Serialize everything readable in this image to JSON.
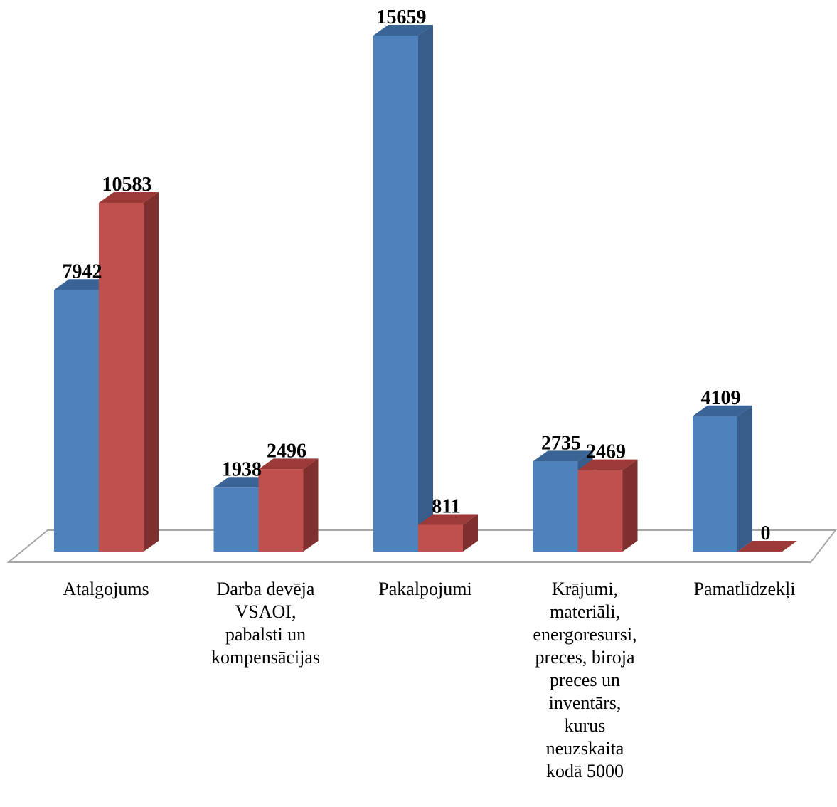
{
  "chart_data": {
    "type": "bar",
    "style": "3d-clustered-column",
    "categories": [
      "Atalgojums",
      "Darba devēja VSAOI, pabalsti un kompensācijas",
      "Pakalpojumi",
      "Krājumi, materiāli, energoresursi, preces, biroja preces un inventārs, kurus neuzskaita kodā 5000",
      "Pamatlīdzekļi"
    ],
    "category_lines": [
      [
        "Atalgojums"
      ],
      [
        "Darba devēja",
        "VSAOI,",
        "pabalsti un",
        "kompensācijas"
      ],
      [
        "Pakalpojumi"
      ],
      [
        "Krājumi,",
        "materiāli,",
        "energoresursi,",
        "preces, biroja",
        "preces un",
        "inventārs,",
        "kurus",
        "neuzskaita",
        "kodā 5000"
      ],
      [
        "Pamatlīdzekļi"
      ]
    ],
    "series": [
      {
        "values": [
          7942,
          1938,
          15659,
          2735,
          4109
        ],
        "color": "#4F81BD",
        "side_color": "#385D8A",
        "top_color": "#3A6396"
      },
      {
        "values": [
          10583,
          2496,
          811,
          2469,
          0
        ],
        "color": "#C0504D",
        "side_color": "#7F302E",
        "top_color": "#9B3A38"
      }
    ],
    "data_labels": true,
    "ylim": [
      0,
      15659
    ],
    "axes_visible": false,
    "grid": false,
    "legend": "none"
  }
}
